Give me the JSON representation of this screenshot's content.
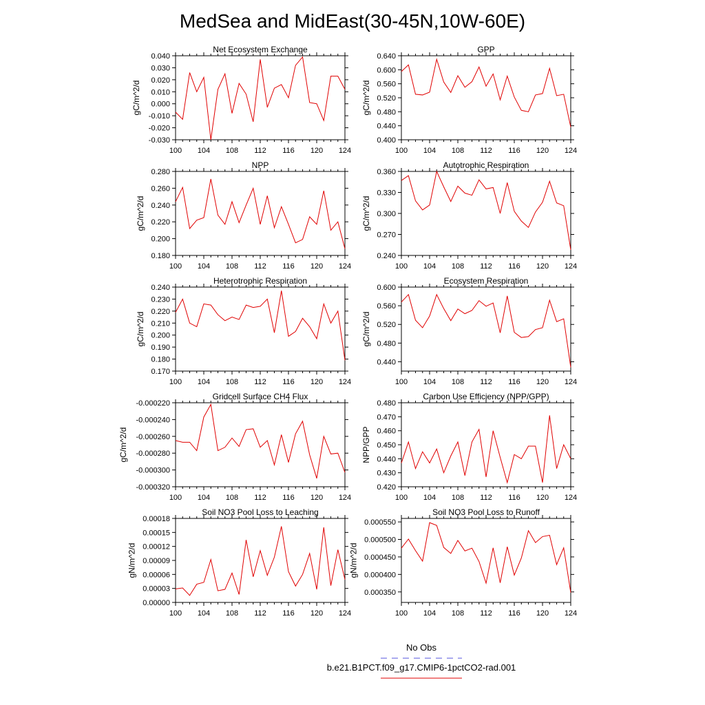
{
  "figure": {
    "title": "MedSea and MidEast(30-45N,10W-60E)",
    "legend": {
      "entries": [
        {
          "label": "No Obs",
          "color": "#5555dd",
          "style": "dashed"
        },
        {
          "label": "b.e21.B1PCT.f09_g17.CMIP6-1pctCO2-rad.001",
          "color": "#e00000",
          "style": "solid"
        }
      ]
    }
  },
  "chart_data": [
    {
      "type": "line",
      "title": "Net Ecosystem Exchange",
      "ylabel": "gC/m^2/d",
      "xlabel": "",
      "xlim": [
        100,
        124
      ],
      "xticks": [
        "100",
        "104",
        "108",
        "112",
        "116",
        "120",
        "124"
      ],
      "ylim": [
        -0.03,
        0.04
      ],
      "yticks": [
        "-0.030",
        "-0.020",
        "-0.010",
        "0.000",
        "0.010",
        "0.020",
        "0.030",
        "0.040"
      ],
      "x": [
        100,
        101,
        102,
        103,
        104,
        105,
        106,
        107,
        108,
        109,
        110,
        111,
        112,
        113,
        114,
        115,
        116,
        117,
        118,
        119,
        120,
        121,
        122,
        123,
        124
      ],
      "series": [
        {
          "color": "#e00000",
          "values": [
            -0.007,
            -0.013,
            0.026,
            0.01,
            0.022,
            -0.03,
            0.012,
            0.025,
            -0.008,
            0.017,
            0.008,
            -0.015,
            0.037,
            -0.003,
            0.013,
            0.016,
            0.005,
            0.032,
            0.039,
            0.001,
            0.0,
            -0.014,
            0.023,
            0.023,
            0.012
          ]
        }
      ]
    },
    {
      "type": "line",
      "title": "GPP",
      "ylabel": "gC/m^2/d",
      "xlabel": "",
      "xlim": [
        100,
        124
      ],
      "xticks": [
        "100",
        "104",
        "108",
        "112",
        "116",
        "120",
        "124"
      ],
      "ylim": [
        0.4,
        0.64
      ],
      "yticks": [
        "0.400",
        "0.440",
        "0.480",
        "0.520",
        "0.560",
        "0.600",
        "0.640"
      ],
      "x": [
        100,
        101,
        102,
        103,
        104,
        105,
        106,
        107,
        108,
        109,
        110,
        111,
        112,
        113,
        114,
        115,
        116,
        117,
        118,
        119,
        120,
        121,
        122,
        123,
        124
      ],
      "series": [
        {
          "color": "#e00000",
          "values": [
            0.595,
            0.614,
            0.53,
            0.528,
            0.536,
            0.63,
            0.565,
            0.535,
            0.583,
            0.55,
            0.566,
            0.608,
            0.553,
            0.588,
            0.514,
            0.582,
            0.522,
            0.484,
            0.48,
            0.528,
            0.532,
            0.604,
            0.526,
            0.53,
            0.436
          ]
        }
      ]
    },
    {
      "type": "line",
      "title": "NPP",
      "ylabel": "gC/m^2/d",
      "xlabel": "",
      "xlim": [
        100,
        124
      ],
      "xticks": [
        "100",
        "104",
        "108",
        "112",
        "116",
        "120",
        "124"
      ],
      "ylim": [
        0.18,
        0.28
      ],
      "yticks": [
        "0.180",
        "0.200",
        "0.220",
        "0.240",
        "0.260",
        "0.280"
      ],
      "x": [
        100,
        101,
        102,
        103,
        104,
        105,
        106,
        107,
        108,
        109,
        110,
        111,
        112,
        113,
        114,
        115,
        116,
        117,
        118,
        119,
        120,
        121,
        122,
        123,
        124
      ],
      "series": [
        {
          "color": "#e00000",
          "values": [
            0.244,
            0.261,
            0.212,
            0.222,
            0.225,
            0.271,
            0.228,
            0.217,
            0.244,
            0.219,
            0.24,
            0.26,
            0.217,
            0.251,
            0.213,
            0.238,
            0.217,
            0.195,
            0.199,
            0.226,
            0.217,
            0.257,
            0.21,
            0.22,
            0.188
          ]
        }
      ]
    },
    {
      "type": "line",
      "title": "Autotrophic Respiration",
      "ylabel": "gC/m^2/d",
      "xlabel": "",
      "xlim": [
        100,
        124
      ],
      "xticks": [
        "100",
        "104",
        "108",
        "112",
        "116",
        "120",
        "124"
      ],
      "ylim": [
        0.24,
        0.36
      ],
      "yticks": [
        "0.240",
        "0.270",
        "0.300",
        "0.330",
        "0.360"
      ],
      "x": [
        100,
        101,
        102,
        103,
        104,
        105,
        106,
        107,
        108,
        109,
        110,
        111,
        112,
        113,
        114,
        115,
        116,
        117,
        118,
        119,
        120,
        121,
        122,
        123,
        124
      ],
      "series": [
        {
          "color": "#e00000",
          "values": [
            0.347,
            0.354,
            0.318,
            0.305,
            0.312,
            0.36,
            0.338,
            0.317,
            0.339,
            0.329,
            0.326,
            0.348,
            0.335,
            0.337,
            0.3,
            0.344,
            0.303,
            0.289,
            0.28,
            0.302,
            0.316,
            0.346,
            0.315,
            0.311,
            0.248
          ]
        }
      ]
    },
    {
      "type": "line",
      "title": "Heterotrophic Respiration",
      "ylabel": "gC/m^2/d",
      "xlabel": "",
      "xlim": [
        100,
        124
      ],
      "xticks": [
        "100",
        "104",
        "108",
        "112",
        "116",
        "120",
        "124"
      ],
      "ylim": [
        0.17,
        0.24
      ],
      "yticks": [
        "0.170",
        "0.180",
        "0.190",
        "0.200",
        "0.210",
        "0.220",
        "0.230",
        "0.240"
      ],
      "x": [
        100,
        101,
        102,
        103,
        104,
        105,
        106,
        107,
        108,
        109,
        110,
        111,
        112,
        113,
        114,
        115,
        116,
        117,
        118,
        119,
        120,
        121,
        122,
        123,
        124
      ],
      "series": [
        {
          "color": "#e00000",
          "values": [
            0.219,
            0.23,
            0.21,
            0.207,
            0.226,
            0.225,
            0.217,
            0.212,
            0.215,
            0.213,
            0.225,
            0.223,
            0.224,
            0.23,
            0.202,
            0.237,
            0.199,
            0.203,
            0.214,
            0.207,
            0.197,
            0.226,
            0.21,
            0.22,
            0.179
          ]
        }
      ]
    },
    {
      "type": "line",
      "title": "Ecosystem Respiration",
      "ylabel": "gC/m^2/d",
      "xlabel": "",
      "xlim": [
        100,
        124
      ],
      "xticks": [
        "100",
        "104",
        "108",
        "112",
        "116",
        "120",
        "124"
      ],
      "ylim": [
        0.42,
        0.6
      ],
      "yticks": [
        "0.440",
        "0.480",
        "0.520",
        "0.560",
        "0.600"
      ],
      "x": [
        100,
        101,
        102,
        103,
        104,
        105,
        106,
        107,
        108,
        109,
        110,
        111,
        112,
        113,
        114,
        115,
        116,
        117,
        118,
        119,
        120,
        121,
        122,
        123,
        124
      ],
      "series": [
        {
          "color": "#e00000",
          "values": [
            0.568,
            0.584,
            0.529,
            0.513,
            0.538,
            0.584,
            0.554,
            0.528,
            0.553,
            0.543,
            0.55,
            0.571,
            0.559,
            0.566,
            0.502,
            0.581,
            0.503,
            0.492,
            0.494,
            0.509,
            0.513,
            0.572,
            0.526,
            0.532,
            0.428
          ]
        }
      ]
    },
    {
      "type": "line",
      "title": "Gridcell Surface CH4 Flux",
      "ylabel": "gC/m^2/d",
      "xlabel": "",
      "xlim": [
        100,
        124
      ],
      "xticks": [
        "100",
        "104",
        "108",
        "112",
        "116",
        "120",
        "124"
      ],
      "ylim": [
        -0.00032,
        -0.00022
      ],
      "yticks": [
        "-0.000320",
        "-0.000300",
        "-0.000280",
        "-0.000260",
        "-0.000240",
        "-0.000220"
      ],
      "x": [
        100,
        101,
        102,
        103,
        104,
        105,
        106,
        107,
        108,
        109,
        110,
        111,
        112,
        113,
        114,
        115,
        116,
        117,
        118,
        119,
        120,
        121,
        122,
        123,
        124
      ],
      "series": [
        {
          "color": "#e00000",
          "values": [
            -0.000265,
            -0.000267,
            -0.000267,
            -0.000277,
            -0.000237,
            -0.000222,
            -0.000277,
            -0.000273,
            -0.000262,
            -0.000272,
            -0.000252,
            -0.000251,
            -0.000273,
            -0.000265,
            -0.000294,
            -0.000258,
            -0.000291,
            -0.000257,
            -0.000242,
            -0.000282,
            -0.00031,
            -0.00026,
            -0.000281,
            -0.00028,
            -0.000303
          ]
        }
      ]
    },
    {
      "type": "line",
      "title": "Carbon Use Efficiency (NPP/GPP)",
      "ylabel": "NPP/GPP",
      "xlabel": "",
      "xlim": [
        100,
        124
      ],
      "xticks": [
        "100",
        "104",
        "108",
        "112",
        "116",
        "120",
        "124"
      ],
      "ylim": [
        0.42,
        0.48
      ],
      "yticks": [
        "0.420",
        "0.430",
        "0.440",
        "0.450",
        "0.460",
        "0.470",
        "0.480"
      ],
      "x": [
        100,
        101,
        102,
        103,
        104,
        105,
        106,
        107,
        108,
        109,
        110,
        111,
        112,
        113,
        114,
        115,
        116,
        117,
        118,
        119,
        120,
        121,
        122,
        123,
        124
      ],
      "series": [
        {
          "color": "#e00000",
          "values": [
            0.437,
            0.452,
            0.433,
            0.445,
            0.437,
            0.447,
            0.43,
            0.442,
            0.452,
            0.428,
            0.452,
            0.461,
            0.427,
            0.46,
            0.441,
            0.423,
            0.443,
            0.44,
            0.449,
            0.449,
            0.423,
            0.471,
            0.433,
            0.45,
            0.44
          ]
        }
      ]
    },
    {
      "type": "line",
      "title": "Soil NO3 Pool Loss to Leaching",
      "ylabel": "gN/m^2/d",
      "xlabel": "",
      "xlim": [
        100,
        124
      ],
      "xticks": [
        "100",
        "104",
        "108",
        "112",
        "116",
        "120",
        "124"
      ],
      "ylim": [
        0,
        0.00018
      ],
      "yticks": [
        "0.00000",
        "0.00003",
        "0.00006",
        "0.00009",
        "0.00012",
        "0.00015",
        "0.00018"
      ],
      "x": [
        100,
        101,
        102,
        103,
        104,
        105,
        106,
        107,
        108,
        109,
        110,
        111,
        112,
        113,
        114,
        115,
        116,
        117,
        118,
        119,
        120,
        121,
        122,
        123,
        124
      ],
      "series": [
        {
          "color": "#e00000",
          "values": [
            2.9e-05,
            3.1e-05,
            1.5e-05,
            3.9e-05,
            4.3e-05,
            9.2e-05,
            2.5e-05,
            2.8e-05,
            6.3e-05,
            1.7e-05,
            0.000134,
            5.5e-05,
            0.000111,
            5.8e-05,
            9.7e-05,
            0.000163,
            6.6e-05,
            3.5e-05,
            6e-05,
            0.000105,
            2.8e-05,
            0.000161,
            3.6e-05,
            0.000113,
            4.9e-05
          ]
        }
      ]
    },
    {
      "type": "line",
      "title": "Soil NO3 Pool Loss to Runoff",
      "ylabel": "gN/m^2/d",
      "xlabel": "",
      "xlim": [
        100,
        124
      ],
      "xticks": [
        "100",
        "104",
        "108",
        "112",
        "116",
        "120",
        "124"
      ],
      "ylim": [
        0.00032,
        0.00056
      ],
      "yticks": [
        "0.000350",
        "0.000400",
        "0.000450",
        "0.000500",
        "0.000550"
      ],
      "x": [
        100,
        101,
        102,
        103,
        104,
        105,
        106,
        107,
        108,
        109,
        110,
        111,
        112,
        113,
        114,
        115,
        116,
        117,
        118,
        119,
        120,
        121,
        122,
        123,
        124
      ],
      "series": [
        {
          "color": "#e00000",
          "values": [
            0.000475,
            0.000501,
            0.000468,
            0.000438,
            0.000548,
            0.00054,
            0.000477,
            0.00046,
            0.000497,
            0.000467,
            0.000475,
            0.000437,
            0.000375,
            0.000476,
            0.000376,
            0.000479,
            0.000398,
            0.000447,
            0.000525,
            0.000491,
            0.000508,
            0.000512,
            0.000428,
            0.000476,
            0.000348
          ]
        }
      ]
    }
  ]
}
